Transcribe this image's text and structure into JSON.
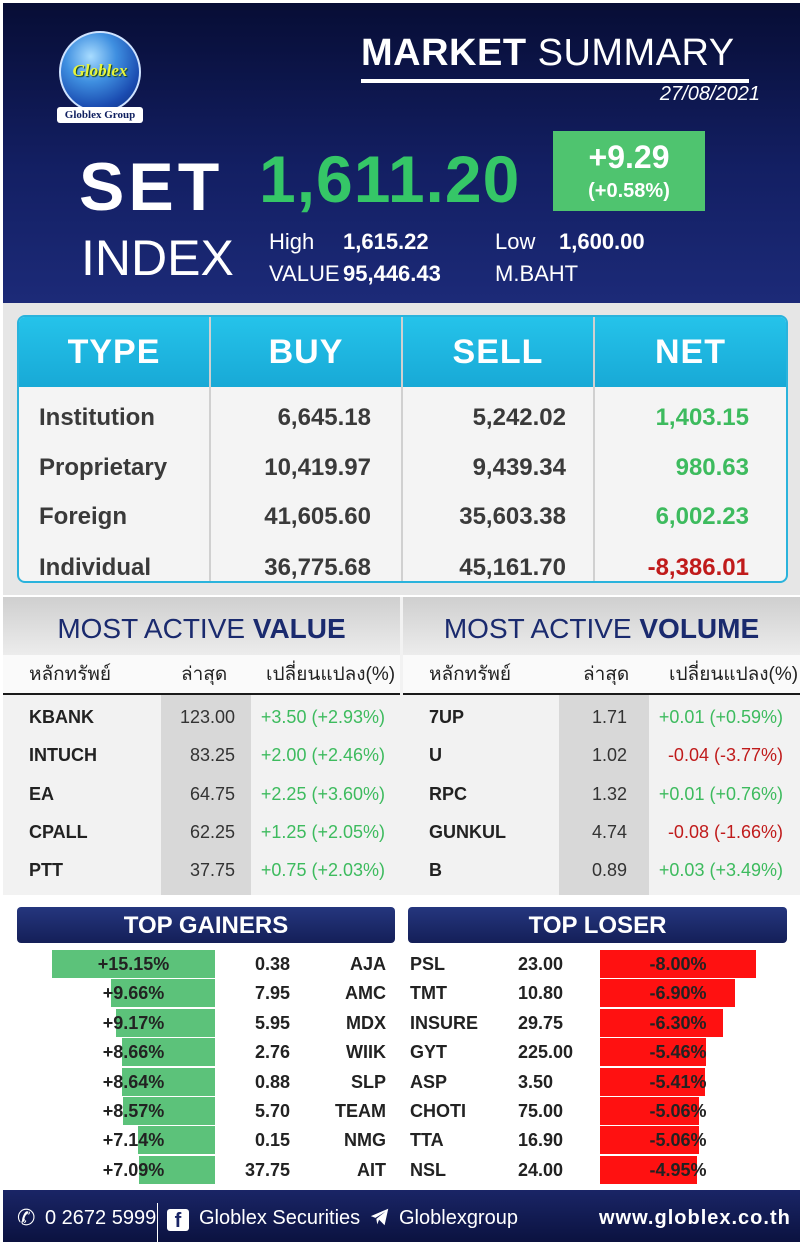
{
  "header": {
    "logo_text": "Globlex",
    "logo_sub": "Globlex Group",
    "title_bold": "MARKET",
    "title_light": " SUMMARY",
    "date": "27/08/2021",
    "set_label": "SET",
    "index_label": "INDEX",
    "set_value": "1,611.20",
    "change": "+9.29",
    "change_pct": "(+0.58%)",
    "high_label": "High",
    "high_value": "1,615.22",
    "low_label": "Low",
    "low_value": "1,600.00",
    "value_label": "VALUE",
    "value_value": "95,446.43",
    "value_unit": "M.BAHT"
  },
  "investors": {
    "headers": [
      "TYPE",
      "BUY",
      "SELL",
      "NET"
    ],
    "rows": [
      {
        "type": "Institution",
        "buy": "6,645.18",
        "sell": "5,242.02",
        "net": "1,403.15"
      },
      {
        "type": "Proprietary",
        "buy": "10,419.97",
        "sell": "9,439.34",
        "net": "980.63"
      },
      {
        "type": "Foreign",
        "buy": "41,605.60",
        "sell": "35,603.38",
        "net": "6,002.23"
      },
      {
        "type": "Individual",
        "buy": "36,775.68",
        "sell": "45,161.70",
        "net": "-8,386.01"
      }
    ]
  },
  "most_active_value": {
    "title_light": "MOST ACTIVE ",
    "title_bold": "VALUE",
    "headers": [
      "หลักทรัพย์",
      "ล่าสุด",
      "เปลี่ยนแปลง(%)"
    ],
    "rows": [
      {
        "symbol": "KBANK",
        "last": "123.00",
        "change": "+3.50 (+2.93%)"
      },
      {
        "symbol": "INTUCH",
        "last": "83.25",
        "change": "+2.00 (+2.46%)"
      },
      {
        "symbol": "EA",
        "last": "64.75",
        "change": "+2.25 (+3.60%)"
      },
      {
        "symbol": "CPALL",
        "last": "62.25",
        "change": "+1.25 (+2.05%)"
      },
      {
        "symbol": "PTT",
        "last": "37.75",
        "change": "+0.75 (+2.03%)"
      }
    ]
  },
  "most_active_volume": {
    "title_light": "MOST ACTIVE ",
    "title_bold": "VOLUME",
    "headers": [
      "หลักทรัพย์",
      "ล่าสุด",
      "เปลี่ยนแปลง(%)"
    ],
    "rows": [
      {
        "symbol": "7UP",
        "last": "1.71",
        "change": "+0.01 (+0.59%)"
      },
      {
        "symbol": "U",
        "last": "1.02",
        "change": "-0.04 (-3.77%)"
      },
      {
        "symbol": "RPC",
        "last": "1.32",
        "change": "+0.01 (+0.76%)"
      },
      {
        "symbol": "GUNKUL",
        "last": "4.74",
        "change": "-0.08 (-1.66%)"
      },
      {
        "symbol": "B",
        "last": "0.89",
        "change": "+0.03 (+3.49%)"
      }
    ]
  },
  "top_gainers": {
    "title": "TOP GAINERS",
    "rows": [
      {
        "pct": "+15.15%",
        "pct_value": 15.15,
        "last": "0.38",
        "symbol": "AJA"
      },
      {
        "pct": "+9.66%",
        "pct_value": 9.66,
        "last": "7.95",
        "symbol": "AMC"
      },
      {
        "pct": "+9.17%",
        "pct_value": 9.17,
        "last": "5.95",
        "symbol": "MDX"
      },
      {
        "pct": "+8.66%",
        "pct_value": 8.66,
        "last": "2.76",
        "symbol": "WIIK"
      },
      {
        "pct": "+8.64%",
        "pct_value": 8.64,
        "last": "0.88",
        "symbol": "SLP"
      },
      {
        "pct": "+8.57%",
        "pct_value": 8.57,
        "last": "5.70",
        "symbol": "TEAM"
      },
      {
        "pct": "+7.14%",
        "pct_value": 7.14,
        "last": "0.15",
        "symbol": "NMG"
      },
      {
        "pct": "+7.09%",
        "pct_value": 7.09,
        "last": "37.75",
        "symbol": "AIT"
      }
    ]
  },
  "top_loser": {
    "title": "TOP LOSER",
    "rows": [
      {
        "symbol": "PSL",
        "last": "23.00",
        "pct": "-8.00%",
        "pct_value": 8.0
      },
      {
        "symbol": "TMT",
        "last": "10.80",
        "pct": "-6.90%",
        "pct_value": 6.9
      },
      {
        "symbol": "INSURE",
        "last": "29.75",
        "pct": "-6.30%",
        "pct_value": 6.3
      },
      {
        "symbol": "GYT",
        "last": "225.00",
        "pct": "-5.46%",
        "pct_value": 5.46
      },
      {
        "symbol": "ASP",
        "last": "3.50",
        "pct": "-5.41%",
        "pct_value": 5.41
      },
      {
        "symbol": "CHOTI",
        "last": "75.00",
        "pct": "-5.06%",
        "pct_value": 5.06
      },
      {
        "symbol": "TTA",
        "last": "16.90",
        "pct": "-5.06%",
        "pct_value": 5.06
      },
      {
        "symbol": "NSL",
        "last": "24.00",
        "pct": "-4.95%",
        "pct_value": 4.95
      }
    ]
  },
  "footer": {
    "phone": "0 2672 5999",
    "facebook": "Globlex Securities",
    "telegram": "Globlexgroup",
    "website": "www.globlex.co.th"
  },
  "colors": {
    "positive": "#3dbb5e",
    "negative": "#c01b1b",
    "header_bg": "#131f63",
    "accent": "#25c3ea"
  }
}
